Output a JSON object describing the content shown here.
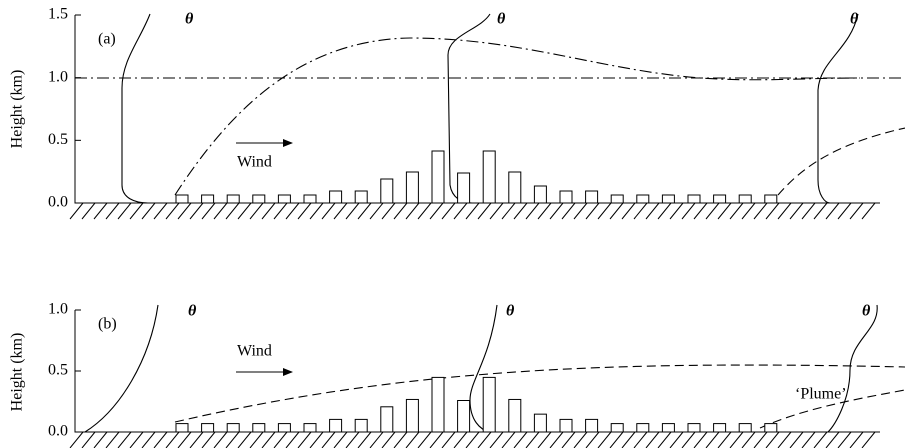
{
  "panels": [
    {
      "label": "(a)",
      "y_label": "Height  (km)",
      "yticks": [
        "0.0",
        "0.5",
        "1.0",
        "1.5"
      ],
      "theta_labels": [
        "θ",
        "θ",
        "θ"
      ],
      "wind_label": "Wind"
    },
    {
      "label": "(b)",
      "y_label": "Height  (km)",
      "yticks": [
        "0.0",
        "0.5",
        "1.0"
      ],
      "theta_labels": [
        "θ",
        "θ",
        "θ"
      ],
      "wind_label": "Wind",
      "plume_label": "‘Plume’"
    }
  ]
}
